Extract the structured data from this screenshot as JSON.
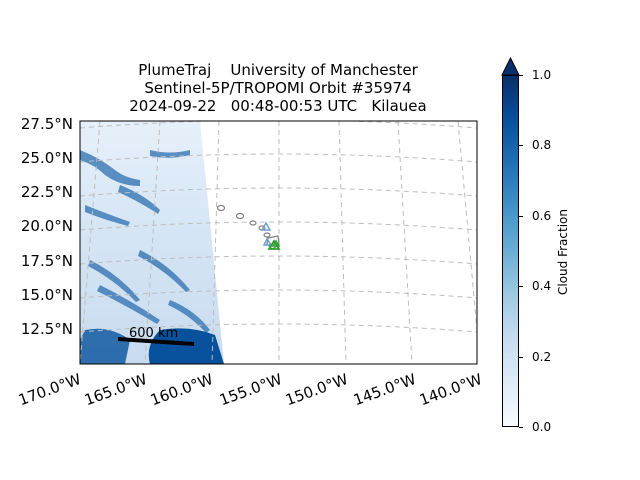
{
  "title": {
    "line1": "PlumeTraj    University of Manchester",
    "line2": "Sentinel-5P/TROPOMI Orbit #35974",
    "line3": "2024-09-22   00:48-00:53 UTC   Kilauea"
  },
  "lat_labels": [
    "27.5°N",
    "25.0°N",
    "22.5°N",
    "20.0°N",
    "17.5°N",
    "15.0°N",
    "12.5°N"
  ],
  "lon_labels": [
    "170.0°W",
    "165.0°W",
    "160.0°W",
    "155.0°W",
    "150.0°W",
    "145.0°W",
    "140.0°W"
  ],
  "scale_bar": "600 km",
  "colorbar": {
    "label": "Cloud Fraction",
    "ticks": [
      "0.0",
      "0.2",
      "0.4",
      "0.6",
      "0.8",
      "1.0"
    ],
    "min": 0.0,
    "max": 1.0,
    "extend": "max",
    "colormap": "Blues"
  },
  "colors": {
    "gridline": "#bdbdbd",
    "coast": "#808080",
    "triangle_blue": "#6a9fd0",
    "triangle_green": "#2ca02c"
  },
  "markers": [
    {
      "type": "volcano",
      "lon": -155.3,
      "lat": 19.4,
      "color": "triangle_green",
      "icon": "triangle-icon"
    },
    {
      "type": "volcano",
      "lon": -155.6,
      "lat": 19.5,
      "color": "triangle_blue",
      "icon": "triangle-icon"
    },
    {
      "type": "volcano",
      "lon": -156.3,
      "lat": 20.7,
      "color": "triangle_blue",
      "icon": "triangle-icon"
    }
  ]
}
